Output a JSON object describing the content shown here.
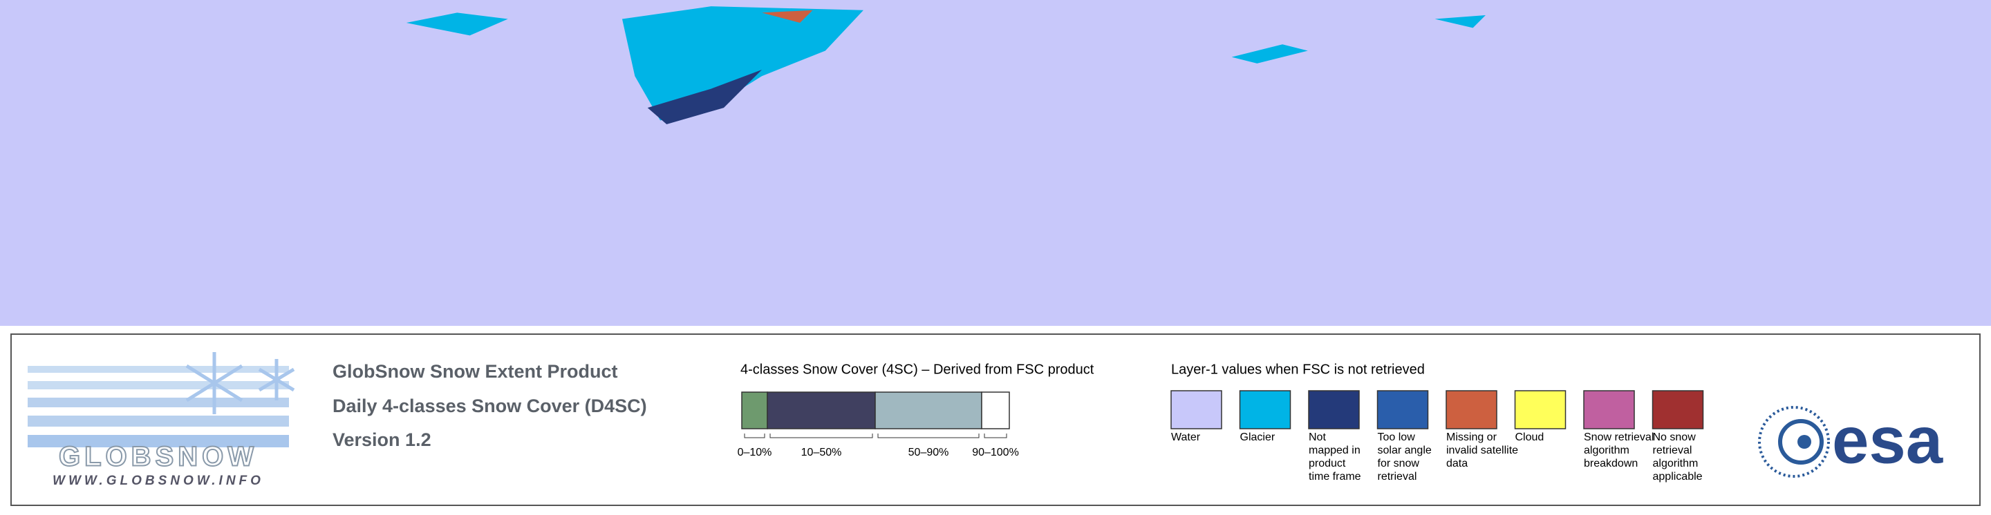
{
  "product": {
    "lines": [
      "GlobSnow Snow Extent Product",
      "Daily 4-classes Snow Cover (D4SC)",
      "Version 1.2"
    ]
  },
  "logo": {
    "name": "GLOBSNOW",
    "url": "WWW.GLOBSNOW.INFO"
  },
  "agency": "esa",
  "snow_classes": {
    "title": "4-classes Snow Cover (4SC) – Derived from FSC product",
    "items": [
      {
        "label": "0–10%",
        "color": "#6e9a6e"
      },
      {
        "label": "10–50%",
        "color": "#404060"
      },
      {
        "label": "50–90%",
        "color": "#a0b8c0"
      },
      {
        "label": "90–100%",
        "color": "#ffffff"
      }
    ]
  },
  "layer1": {
    "title": "Layer-1 values when FSC is not retrieved",
    "items": [
      {
        "lines": [
          "Water"
        ],
        "color": "#c8c8fa"
      },
      {
        "lines": [
          "Glacier"
        ],
        "color": "#00b4e6"
      },
      {
        "lines": [
          "Not",
          "mapped in",
          "product",
          "time frame"
        ],
        "color": "#243a7a"
      },
      {
        "lines": [
          "Too low",
          "solar angle",
          "for snow",
          "retrieval"
        ],
        "color": "#2a5eab"
      },
      {
        "lines": [
          "Missing or",
          "invalid satellite",
          "data"
        ],
        "color": "#cd6040"
      },
      {
        "lines": [
          "Cloud"
        ],
        "color": "#ffff5a"
      },
      {
        "lines": [
          "Snow retrieval",
          "algorithm",
          "breakdown"
        ],
        "color": "#c060a0"
      },
      {
        "lines": [
          "No snow",
          "retrieval",
          "algorithm",
          "applicable"
        ],
        "color": "#a03030"
      }
    ]
  }
}
